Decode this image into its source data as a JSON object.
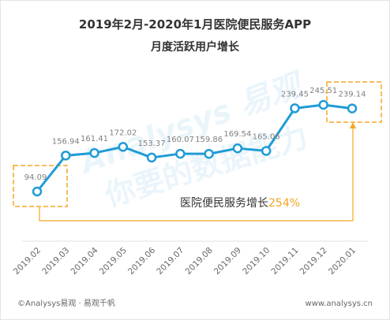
{
  "chart_data": {
    "type": "line",
    "title": "2019年2月-2020年1月医院便民服务APP",
    "subtitle": "月度活跃用户增长",
    "categories": [
      "2019.02",
      "2019.03",
      "2019.04",
      "2019.05",
      "2019.06",
      "2019.07",
      "2019.08",
      "2019.09",
      "2019.10",
      "2019.11",
      "2019.12",
      "2020.01"
    ],
    "values": [
      94.09,
      156.94,
      161.41,
      172.02,
      153.37,
      160.07,
      159.86,
      169.54,
      165.06,
      239.45,
      245.51,
      239.14
    ],
    "data_labels": true,
    "grid": false,
    "annotation": {
      "text": "医院便民服务增长",
      "highlight": "254%"
    },
    "colors": {
      "line": "#1f9bd6",
      "marker_fill": "#ffffff",
      "highlight": "#f5a623",
      "data_label": "#808080"
    }
  },
  "footer": {
    "left": "©Analysys易观 · 易观千帆",
    "right": "www.analysys.cn"
  },
  "watermark": {
    "brand": "Analysys 易观",
    "slogan": "你要的数据能力"
  }
}
